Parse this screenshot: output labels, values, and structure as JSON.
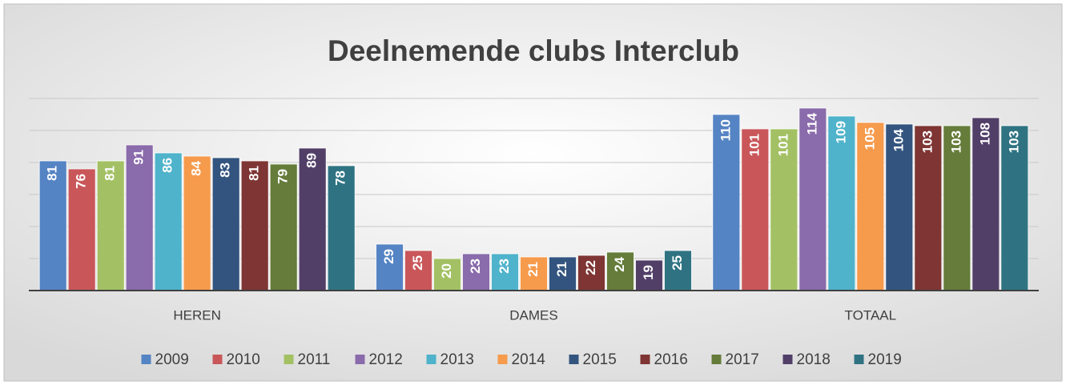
{
  "chart_data": {
    "type": "bar",
    "title": "Deelnemende clubs Interclub",
    "categories": [
      "HEREN",
      "DAMES",
      "TOTAAL"
    ],
    "series": [
      {
        "name": "2009",
        "color": "#5584c4",
        "values": [
          81,
          29,
          110
        ]
      },
      {
        "name": "2010",
        "color": "#c9575a",
        "values": [
          76,
          25,
          101
        ]
      },
      {
        "name": "2011",
        "color": "#a3c164",
        "values": [
          81,
          20,
          101
        ]
      },
      {
        "name": "2012",
        "color": "#8a6bab",
        "values": [
          91,
          23,
          114
        ]
      },
      {
        "name": "2013",
        "color": "#4fb3cb",
        "values": [
          86,
          23,
          109
        ]
      },
      {
        "name": "2014",
        "color": "#f69a4c",
        "values": [
          84,
          21,
          105
        ]
      },
      {
        "name": "2015",
        "color": "#33547f",
        "values": [
          83,
          21,
          104
        ]
      },
      {
        "name": "2016",
        "color": "#7e3533",
        "values": [
          81,
          22,
          103
        ]
      },
      {
        "name": "2017",
        "color": "#657c3a",
        "values": [
          79,
          24,
          103
        ]
      },
      {
        "name": "2018",
        "color": "#523f68",
        "values": [
          89,
          19,
          108
        ]
      },
      {
        "name": "2019",
        "color": "#2f7383",
        "values": [
          78,
          25,
          103
        ]
      }
    ],
    "ylim": [
      0,
      120
    ],
    "yticks": [
      0,
      20,
      40,
      60,
      80,
      100,
      120
    ],
    "grid": true,
    "legend": "bottom"
  }
}
